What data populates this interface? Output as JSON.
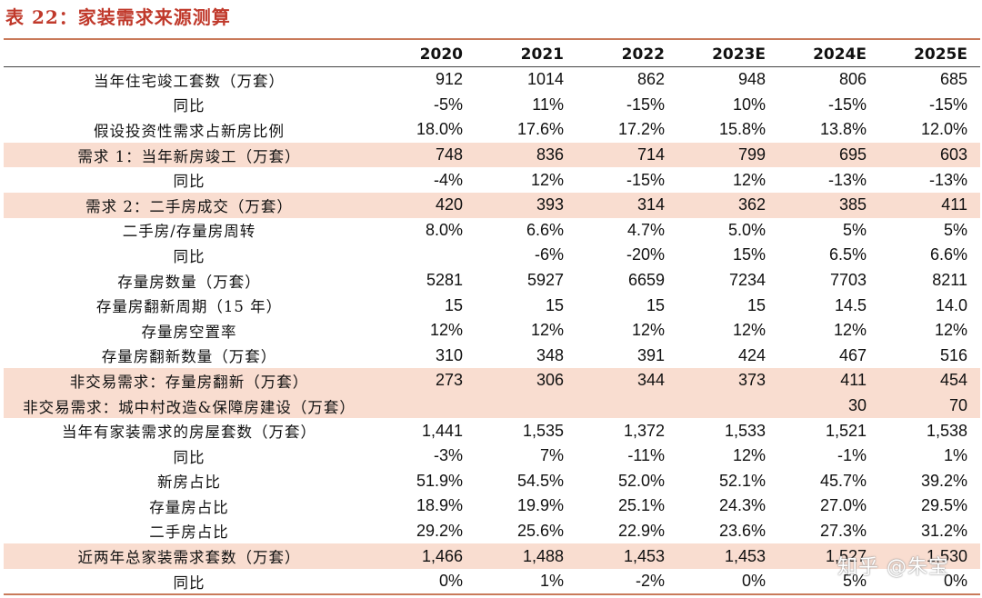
{
  "title": "表 22：家装需求来源测算",
  "columns": [
    "",
    "2020",
    "2021",
    "2022",
    "2023E",
    "2024E",
    "2025E"
  ],
  "rows": [
    {
      "label": "当年住宅竣工套数（万套）",
      "values": [
        "912",
        "1014",
        "862",
        "948",
        "806",
        "685"
      ],
      "highlight": false
    },
    {
      "label": "同比",
      "values": [
        "-5%",
        "11%",
        "-15%",
        "10%",
        "-15%",
        "-15%"
      ],
      "highlight": false
    },
    {
      "label": "假设投资性需求占新房比例",
      "values": [
        "18.0%",
        "17.6%",
        "17.2%",
        "15.8%",
        "13.8%",
        "12.0%"
      ],
      "highlight": false
    },
    {
      "label": "需求 1：当年新房竣工（万套）",
      "values": [
        "748",
        "836",
        "714",
        "799",
        "695",
        "603"
      ],
      "highlight": true
    },
    {
      "label": "同比",
      "values": [
        "-4%",
        "12%",
        "-15%",
        "12%",
        "-13%",
        "-13%"
      ],
      "highlight": false
    },
    {
      "label": "需求 2：二手房成交（万套）",
      "values": [
        "420",
        "393",
        "314",
        "362",
        "385",
        "411"
      ],
      "highlight": true
    },
    {
      "label": "二手房/存量房周转",
      "values": [
        "8.0%",
        "6.6%",
        "4.7%",
        "5.0%",
        "5%",
        "5%"
      ],
      "highlight": false
    },
    {
      "label": "同比",
      "values": [
        "",
        "-6%",
        "-20%",
        "15%",
        "6.5%",
        "6.6%"
      ],
      "highlight": false
    },
    {
      "label": "存量房数量（万套）",
      "values": [
        "5281",
        "5927",
        "6659",
        "7234",
        "7703",
        "8211"
      ],
      "highlight": false
    },
    {
      "label": "存量房翻新周期（15 年）",
      "values": [
        "15",
        "15",
        "15",
        "15",
        "14.5",
        "14.0"
      ],
      "highlight": false
    },
    {
      "label": "存量房空置率",
      "values": [
        "12%",
        "12%",
        "12%",
        "12%",
        "12%",
        "12%"
      ],
      "highlight": false
    },
    {
      "label": "存量房翻新数量（万套）",
      "values": [
        "310",
        "348",
        "391",
        "424",
        "467",
        "516"
      ],
      "highlight": false
    },
    {
      "label": "非交易需求：存量房翻新（万套）",
      "values": [
        "273",
        "306",
        "344",
        "373",
        "411",
        "454"
      ],
      "highlight": true
    },
    {
      "label": "非交易需求：城中村改造&保障房建设（万套）",
      "values": [
        "",
        "",
        "",
        "",
        "30",
        "70"
      ],
      "highlight": true
    },
    {
      "label": "当年有家装需求的房屋套数（万套）",
      "values": [
        "1,441",
        "1,535",
        "1,372",
        "1,533",
        "1,521",
        "1,538"
      ],
      "highlight": false
    },
    {
      "label": "同比",
      "values": [
        "-3%",
        "7%",
        "-11%",
        "12%",
        "-1%",
        "1%"
      ],
      "highlight": false
    },
    {
      "label": "新房占比",
      "values": [
        "51.9%",
        "54.5%",
        "52.0%",
        "52.1%",
        "45.7%",
        "39.2%"
      ],
      "highlight": false
    },
    {
      "label": "存量房占比",
      "values": [
        "18.9%",
        "19.9%",
        "25.1%",
        "24.3%",
        "27.0%",
        "29.5%"
      ],
      "highlight": false
    },
    {
      "label": "二手房占比",
      "values": [
        "29.2%",
        "25.6%",
        "22.9%",
        "23.6%",
        "27.3%",
        "31.2%"
      ],
      "highlight": false
    },
    {
      "label": "近两年总家装需求套数（万套）",
      "values": [
        "1,466",
        "1,488",
        "1,453",
        "1,453",
        "1,527",
        "1,530"
      ],
      "highlight": true
    },
    {
      "label": "同比",
      "values": [
        "0%",
        "1%",
        "-2%",
        "0%",
        "5%",
        "0%"
      ],
      "highlight": false
    }
  ],
  "watermark": "知乎 @朱宝"
}
